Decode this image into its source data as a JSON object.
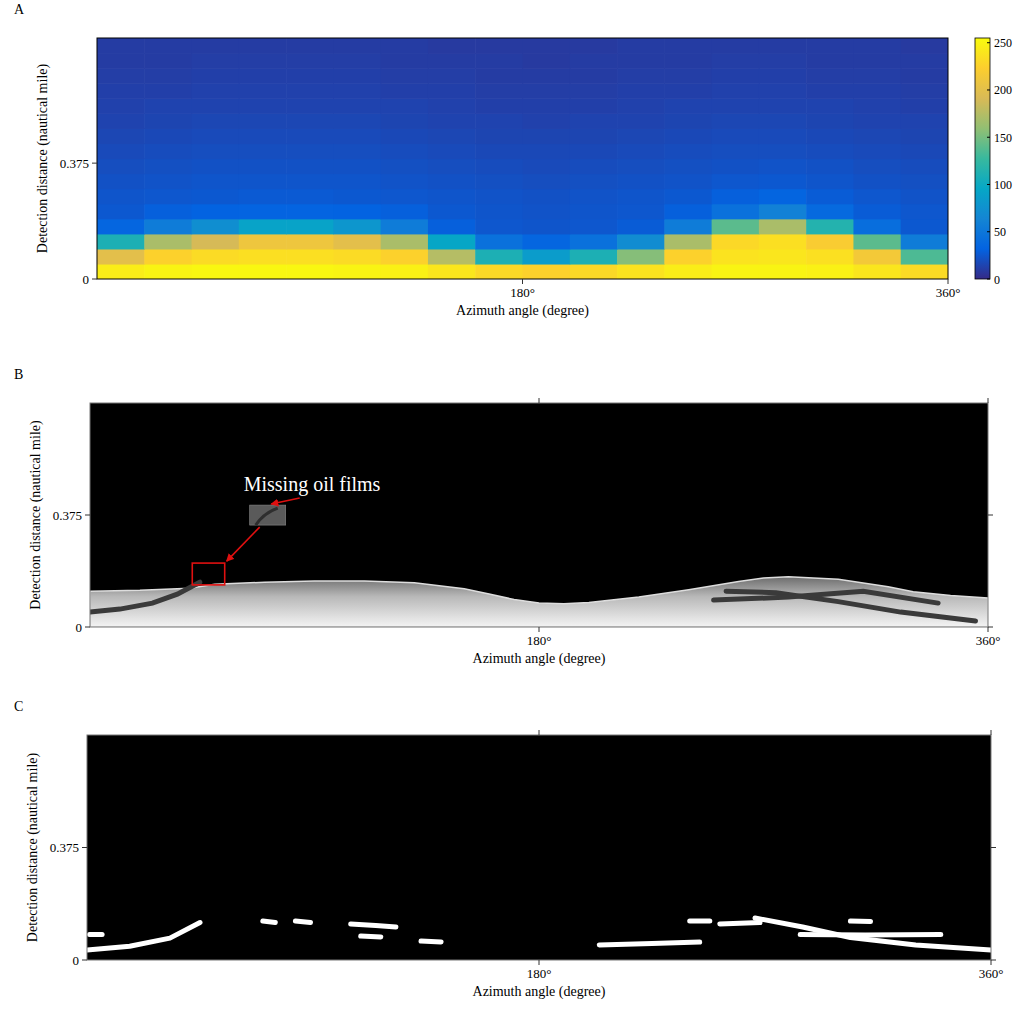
{
  "chart_data": [
    {
      "type": "heatmap",
      "title": "A",
      "x_label": "Azimuth angle (degree)",
      "y_label": "Detection distance (nautical mile)",
      "xlim": [
        0,
        360
      ],
      "ylim": [
        0,
        0.78
      ],
      "xticks": [
        {
          "value": 180,
          "label": "180°"
        },
        {
          "value": 360,
          "label": "360°"
        }
      ],
      "yticks": [
        0,
        0.375
      ],
      "color_range": [
        0,
        255
      ],
      "color_ticks": [
        0,
        50,
        100,
        150,
        200,
        250
      ],
      "cells": [
        [
          245,
          250,
          252,
          252,
          252,
          250,
          248,
          240,
          230,
          225,
          230,
          238,
          245,
          250,
          250,
          248,
          240,
          232
        ],
        [
          200,
          225,
          232,
          235,
          235,
          232,
          225,
          175,
          110,
          85,
          110,
          155,
          225,
          238,
          240,
          236,
          215,
          135
        ],
        [
          110,
          170,
          190,
          210,
          210,
          200,
          170,
          95,
          45,
          35,
          45,
          70,
          170,
          230,
          235,
          220,
          140,
          55
        ],
        [
          35,
          55,
          72,
          92,
          92,
          80,
          55,
          30,
          25,
          24,
          25,
          28,
          55,
          140,
          170,
          115,
          42,
          26
        ],
        [
          26,
          30,
          32,
          33,
          33,
          32,
          30,
          26,
          24,
          23,
          24,
          25,
          30,
          45,
          60,
          38,
          28,
          25
        ],
        [
          24,
          25,
          26,
          27,
          27,
          26,
          25,
          24,
          23,
          22,
          23,
          24,
          26,
          30,
          34,
          28,
          25,
          23
        ],
        [
          22,
          23,
          24,
          24,
          24,
          24,
          23,
          22,
          21,
          20,
          21,
          22,
          23,
          25,
          26,
          24,
          22,
          21
        ],
        [
          20,
          21,
          22,
          22,
          22,
          22,
          21,
          20,
          19,
          18,
          19,
          20,
          21,
          22,
          23,
          22,
          20,
          19
        ],
        [
          18,
          19,
          20,
          20,
          20,
          20,
          19,
          18,
          17,
          17,
          17,
          18,
          19,
          20,
          20,
          19,
          18,
          17
        ],
        [
          16,
          17,
          18,
          18,
          18,
          18,
          17,
          16,
          15,
          15,
          15,
          16,
          17,
          18,
          18,
          17,
          16,
          15
        ],
        [
          14,
          15,
          16,
          16,
          16,
          16,
          15,
          14,
          14,
          13,
          14,
          14,
          15,
          16,
          16,
          15,
          14,
          14
        ],
        [
          13,
          14,
          14,
          14,
          14,
          14,
          14,
          13,
          12,
          12,
          12,
          13,
          14,
          14,
          14,
          14,
          13,
          12
        ],
        [
          12,
          12,
          13,
          13,
          13,
          13,
          12,
          12,
          11,
          11,
          11,
          12,
          12,
          13,
          13,
          12,
          12,
          11
        ],
        [
          11,
          11,
          12,
          12,
          12,
          12,
          11,
          11,
          10,
          10,
          10,
          11,
          11,
          12,
          12,
          11,
          11,
          10
        ],
        [
          10,
          10,
          11,
          11,
          11,
          11,
          10,
          10,
          10,
          9,
          10,
          10,
          10,
          11,
          11,
          10,
          10,
          10
        ],
        [
          10,
          10,
          10,
          10,
          10,
          10,
          10,
          9,
          9,
          9,
          9,
          10,
          10,
          10,
          10,
          10,
          10,
          9
        ]
      ]
    },
    {
      "type": "image",
      "title": "B",
      "x_label": "Azimuth angle (degree)",
      "y_label": "Detection distance (nautical mile)",
      "xlim": [
        0,
        360
      ],
      "ylim": [
        0,
        0.75
      ],
      "xticks": [
        {
          "value": 180,
          "label": "180°"
        },
        {
          "value": 360,
          "label": "360°"
        }
      ],
      "yticks": [
        0,
        0.375
      ],
      "echo_boundary": {
        "x": [
          0,
          20,
          40,
          50,
          70,
          90,
          110,
          130,
          150,
          160,
          170,
          180,
          190,
          200,
          220,
          240,
          260,
          270,
          280,
          300,
          320,
          330,
          345,
          360
        ],
        "y": [
          0.12,
          0.123,
          0.13,
          0.143,
          0.15,
          0.154,
          0.154,
          0.148,
          0.128,
          0.11,
          0.092,
          0.08,
          0.078,
          0.082,
          0.1,
          0.125,
          0.152,
          0.164,
          0.168,
          0.16,
          0.135,
          0.118,
          0.105,
          0.097
        ]
      },
      "oil_films": [
        {
          "x": [
            0,
            12,
            25,
            35,
            44
          ],
          "y": [
            0.05,
            0.06,
            0.08,
            0.11,
            0.15
          ]
        },
        {
          "x": [
            255,
            275,
            300,
            325,
            355
          ],
          "y": [
            0.12,
            0.115,
            0.085,
            0.05,
            0.02
          ]
        },
        {
          "x": [
            250,
            280,
            310,
            340
          ],
          "y": [
            0.09,
            0.1,
            0.12,
            0.08
          ]
        }
      ],
      "annotations": [
        {
          "text": "Missing oil films",
          "box": {
            "x": [
              41,
              54
            ],
            "y": [
              0.141,
              0.214
            ]
          }
        }
      ]
    },
    {
      "type": "mask",
      "title": "C",
      "x_label": "Azimuth angle (degree)",
      "y_label": "Detection distance (nautical mile)",
      "xlim": [
        0,
        360
      ],
      "ylim": [
        0,
        0.75
      ],
      "xticks": [
        {
          "value": 180,
          "label": "180°"
        },
        {
          "value": 360,
          "label": "360°"
        }
      ],
      "yticks": [
        0,
        0.375
      ],
      "segments": [
        {
          "x": [
            0,
            17,
            33,
            45
          ],
          "y": [
            0.033,
            0.046,
            0.073,
            0.125
          ]
        },
        {
          "x": [
            1,
            6
          ],
          "y": [
            0.085,
            0.085
          ]
        },
        {
          "x": [
            70,
            75
          ],
          "y": [
            0.13,
            0.125
          ]
        },
        {
          "x": [
            83,
            89
          ],
          "y": [
            0.13,
            0.125
          ]
        },
        {
          "x": [
            105,
            115,
            123
          ],
          "y": [
            0.12,
            0.115,
            0.11
          ]
        },
        {
          "x": [
            109,
            117
          ],
          "y": [
            0.08,
            0.077
          ]
        },
        {
          "x": [
            133,
            141
          ],
          "y": [
            0.063,
            0.06
          ]
        },
        {
          "x": [
            204,
            225,
            244
          ],
          "y": [
            0.05,
            0.055,
            0.06
          ]
        },
        {
          "x": [
            240,
            248
          ],
          "y": [
            0.13,
            0.13
          ]
        },
        {
          "x": [
            252,
            268
          ],
          "y": [
            0.12,
            0.125
          ]
        },
        {
          "x": [
            266,
            285,
            304,
            330,
            360
          ],
          "y": [
            0.14,
            0.11,
            0.075,
            0.05,
            0.033
          ]
        },
        {
          "x": [
            284,
            310,
            340
          ],
          "y": [
            0.085,
            0.083,
            0.085
          ]
        },
        {
          "x": [
            304,
            312
          ],
          "y": [
            0.13,
            0.128
          ]
        }
      ]
    }
  ]
}
